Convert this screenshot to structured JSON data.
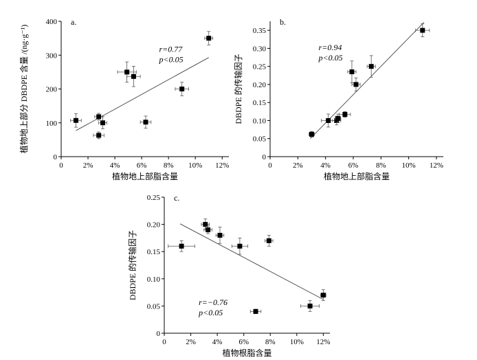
{
  "chart_data": [
    {
      "type": "scatter",
      "panel_label": "a.",
      "xlabel": "植物地上部脂含量",
      "ylabel": "植物地上部分 DBDPE 含量 /(ng·g⁻¹)",
      "xlim": [
        0,
        12.5
      ],
      "ylim": [
        0,
        400
      ],
      "xticks": [
        0,
        2,
        4,
        6,
        8,
        10,
        12
      ],
      "xtick_labels": [
        "0",
        "2%",
        "4%",
        "6%",
        "8%",
        "10%",
        "12%"
      ],
      "yticks": [
        0,
        100,
        200,
        300,
        400
      ],
      "ytick_labels": [
        "0",
        "100",
        "200",
        "300",
        "400"
      ],
      "annotation_r": "r=0.77",
      "annotation_p": "p<0.05",
      "ann_at": [
        7.3,
        310
      ],
      "points": [
        {
          "x": 1.1,
          "y": 107,
          "xerr": 0.4,
          "yerr": 20
        },
        {
          "x": 2.8,
          "y": 63,
          "xerr": 0.4,
          "yerr": 10
        },
        {
          "x": 2.8,
          "y": 118,
          "xerr": 0.3,
          "yerr": 10
        },
        {
          "x": 3.1,
          "y": 100,
          "xerr": 0.3,
          "yerr": 18
        },
        {
          "x": 4.9,
          "y": 250,
          "xerr": 0.7,
          "yerr": 30
        },
        {
          "x": 5.4,
          "y": 237,
          "xerr": 0.5,
          "yerr": 30
        },
        {
          "x": 6.3,
          "y": 102,
          "xerr": 0.4,
          "yerr": 18
        },
        {
          "x": 9.0,
          "y": 200,
          "xerr": 0.5,
          "yerr": 20
        },
        {
          "x": 11.0,
          "y": 350,
          "xerr": 0.3,
          "yerr": 20
        }
      ],
      "fit": [
        [
          1.1,
          77
        ],
        [
          11.0,
          293
        ]
      ]
    },
    {
      "type": "scatter",
      "panel_label": "b.",
      "xlabel": "植物地上部脂含量",
      "ylabel": "DBDPE 的传输因子",
      "xlim": [
        0,
        12.5
      ],
      "ylim": [
        0,
        0.375
      ],
      "xticks": [
        0,
        2,
        4,
        6,
        8,
        10,
        12
      ],
      "xtick_labels": [
        "0",
        "2%",
        "4%",
        "6%",
        "8%",
        "10%",
        "12%"
      ],
      "yticks": [
        0,
        0.05,
        0.1,
        0.15,
        0.2,
        0.25,
        0.3,
        0.35
      ],
      "ytick_labels": [
        "0",
        "0.05",
        "0.10",
        "0.15",
        "0.20",
        "0.25",
        "0.30",
        "0.35"
      ],
      "annotation_r": "r=0.94",
      "annotation_p": "p<0.05",
      "ann_at": [
        3.5,
        0.295
      ],
      "points": [
        {
          "x": 3.0,
          "y": 0.062,
          "xerr": 0.2,
          "yerr": 0.008
        },
        {
          "x": 4.2,
          "y": 0.1,
          "xerr": 0.5,
          "yerr": 0.018
        },
        {
          "x": 4.8,
          "y": 0.1,
          "xerr": 0.3,
          "yerr": 0.012
        },
        {
          "x": 4.9,
          "y": 0.106,
          "xerr": 0.2,
          "yerr": 0.012
        },
        {
          "x": 5.4,
          "y": 0.117,
          "xerr": 0.4,
          "yerr": 0.008
        },
        {
          "x": 5.9,
          "y": 0.235,
          "xerr": 0.3,
          "yerr": 0.03
        },
        {
          "x": 6.2,
          "y": 0.2,
          "xerr": 0.3,
          "yerr": 0.018
        },
        {
          "x": 7.3,
          "y": 0.25,
          "xerr": 0.3,
          "yerr": 0.03
        },
        {
          "x": 11.0,
          "y": 0.35,
          "xerr": 0.5,
          "yerr": 0.018
        }
      ],
      "fit": [
        [
          2.9,
          0.05
        ],
        [
          11.1,
          0.372
        ]
      ]
    },
    {
      "type": "scatter",
      "panel_label": "c.",
      "xlabel": "植物根脂含量",
      "ylabel": "DBDPE 的传输因子",
      "xlim": [
        0,
        12.5
      ],
      "ylim": [
        0,
        0.25
      ],
      "xticks": [
        0,
        2,
        4,
        6,
        8,
        10,
        12
      ],
      "xtick_labels": [
        "0",
        "2%",
        "4%",
        "6%",
        "8%",
        "10%",
        "12%"
      ],
      "yticks": [
        0,
        0.05,
        0.1,
        0.15,
        0.2,
        0.25
      ],
      "ytick_labels": [
        "0",
        "0.05",
        "0.10",
        "0.15",
        "0.20",
        "0.25"
      ],
      "annotation_r": "r=−0.76",
      "annotation_p": "p<0.05",
      "ann_at": [
        2.6,
        0.052
      ],
      "points": [
        {
          "x": 1.3,
          "y": 0.16,
          "xerr": 1.0,
          "yerr": 0.01
        },
        {
          "x": 3.1,
          "y": 0.2,
          "xerr": 0.3,
          "yerr": 0.01
        },
        {
          "x": 3.3,
          "y": 0.19,
          "xerr": 0.3,
          "yerr": 0.007
        },
        {
          "x": 4.2,
          "y": 0.18,
          "xerr": 0.3,
          "yerr": 0.015
        },
        {
          "x": 5.7,
          "y": 0.16,
          "xerr": 0.6,
          "yerr": 0.015
        },
        {
          "x": 6.9,
          "y": 0.04,
          "xerr": 0.4,
          "yerr": 0.004
        },
        {
          "x": 7.9,
          "y": 0.17,
          "xerr": 0.3,
          "yerr": 0.01
        },
        {
          "x": 11.0,
          "y": 0.05,
          "xerr": 0.7,
          "yerr": 0.01
        },
        {
          "x": 12.0,
          "y": 0.07,
          "xerr": 0.2,
          "yerr": 0.01
        }
      ],
      "fit": [
        [
          1.2,
          0.201
        ],
        [
          12.0,
          0.062
        ]
      ]
    }
  ]
}
